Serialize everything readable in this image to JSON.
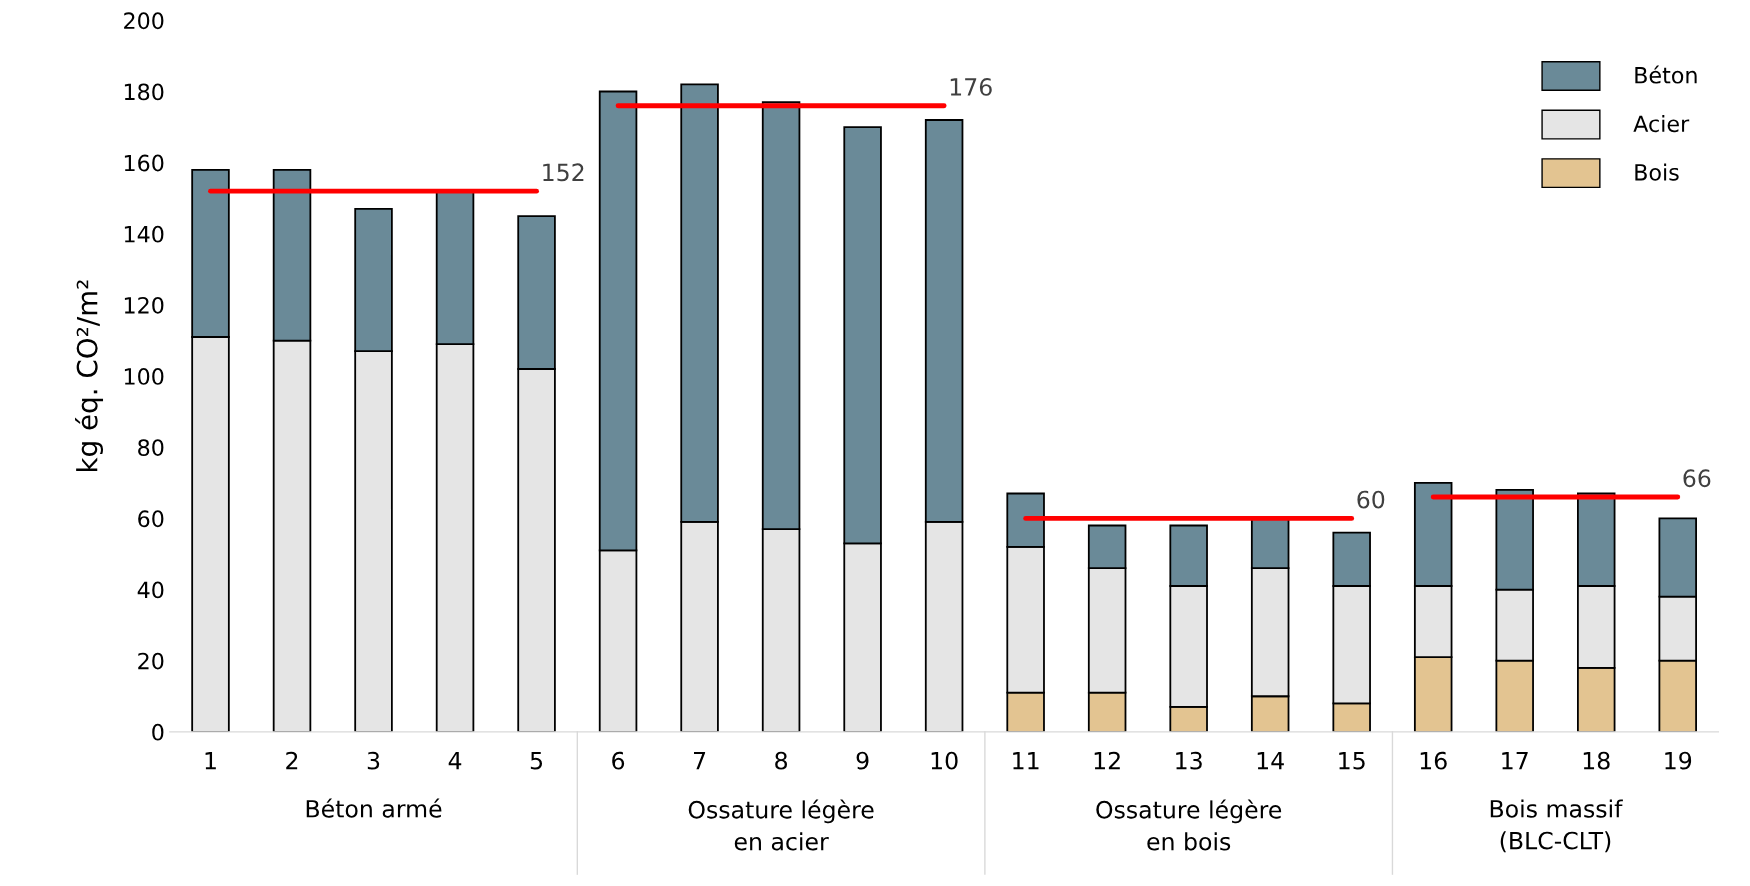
{
  "chart_data": {
    "type": "bar",
    "stacked": true,
    "ylabel": "kg éq. CO²/m²",
    "categories": [
      "1",
      "2",
      "3",
      "4",
      "5",
      "6",
      "7",
      "8",
      "9",
      "10",
      "11",
      "12",
      "13",
      "14",
      "15",
      "16",
      "17",
      "18",
      "19"
    ],
    "series": [
      {
        "name": "Bois",
        "color": "#e3c491",
        "values": [
          0,
          0,
          0,
          0,
          0,
          0,
          0,
          0,
          0,
          0,
          11,
          11,
          7,
          10,
          8,
          21,
          20,
          18,
          20
        ]
      },
      {
        "name": "Acier",
        "color": "#e5e5e5",
        "values": [
          111,
          110,
          107,
          109,
          102,
          51,
          59,
          57,
          53,
          59,
          41,
          35,
          34,
          36,
          33,
          20,
          20,
          23,
          18
        ]
      },
      {
        "name": "Béton",
        "color": "#6a8a98",
        "values": [
          47,
          48,
          40,
          43,
          43,
          129,
          123,
          120,
          117,
          113,
          15,
          12,
          17,
          14,
          15,
          29,
          28,
          26,
          22
        ]
      }
    ],
    "ylim": [
      0,
      200
    ],
    "yticks": [
      0,
      20,
      40,
      60,
      80,
      100,
      120,
      140,
      160,
      180,
      200
    ],
    "ref_lines": [
      {
        "axis": "y",
        "value": 152,
        "label": "152",
        "color": "#ff0000"
      },
      {
        "axis": "y",
        "value": 176,
        "label": "176",
        "color": "#ff0000"
      },
      {
        "axis": "y",
        "value": 60,
        "label": "60",
        "color": "#ff0000"
      },
      {
        "axis": "y",
        "value": 66,
        "label": "66",
        "color": "#ff0000"
      }
    ],
    "annotations": [
      "Béton armé",
      "Ossature légère\nen acier",
      "Ossature légère\nen bois",
      "Bois massif\n(BLC-CLT)"
    ],
    "legend": "top right",
    "grid": false
  }
}
